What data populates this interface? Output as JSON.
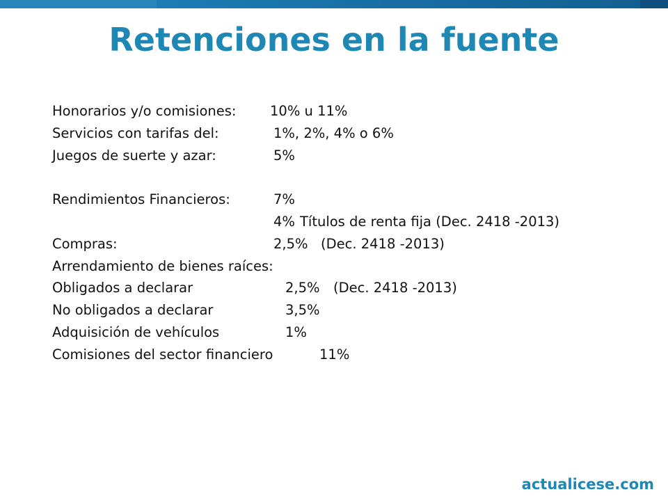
{
  "title": "Retenciones en la fuente",
  "rows": [
    {
      "label": "Honorarios y/o comisiones:",
      "value": "10% u 11%",
      "note": ""
    },
    {
      "label": "Servicios con tarifas del:",
      "value": "1%, 2%, 4% o  6%",
      "note": ""
    },
    {
      "label": "Juegos de suerte y azar:",
      "value": "5%",
      "note": ""
    },
    {
      "label": "",
      "value": "",
      "note": ""
    },
    {
      "label": "Rendimientos Financieros:",
      "value": "7%",
      "note": ""
    },
    {
      "label": "",
      "value": "4%",
      "note": "Títulos de renta fija (Dec. 2418 -2013)"
    },
    {
      "label": "Compras:",
      "value": "2,5%",
      "note": "(Dec. 2418 -2013)"
    },
    {
      "label": "Arrendamiento de bienes raíces:",
      "value": "",
      "note": ""
    },
    {
      "label": "Obligados a declarar",
      "value": "2,5%",
      "note": "(Dec. 2418 -2013)"
    },
    {
      "label": "No obligados a declarar",
      "value": "3,5%",
      "note": ""
    },
    {
      "label": "Adquisición de vehículos",
      "value": "1%",
      "note": ""
    },
    {
      "label": "Comisiones del sector financiero",
      "value": "11%",
      "note": ""
    }
  ],
  "logo": "actualicese.com",
  "colors": {
    "accent": "#1f87b4",
    "bar_light": "#2a86bd",
    "bar_dark": "#0e4f7f",
    "text": "#111111"
  }
}
